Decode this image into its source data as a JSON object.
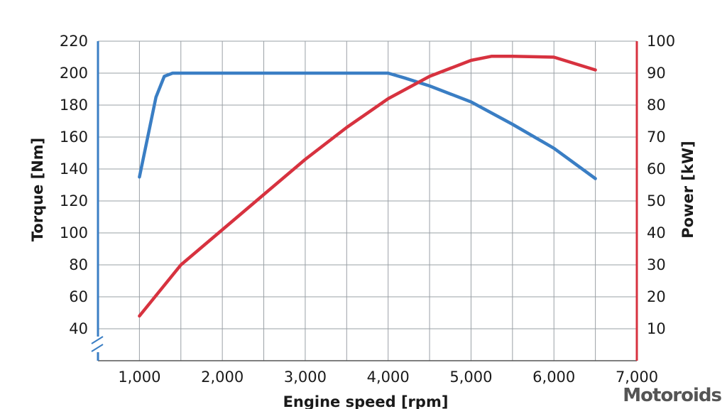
{
  "chart_data": {
    "type": "line",
    "xlabel": "Engine speed [rpm]",
    "ylabel_left": "Torque [Nm]",
    "ylabel_right": "Power [kW]",
    "xlim": [
      500,
      7000
    ],
    "ylim_left": [
      20,
      220
    ],
    "ylim_right": [
      1,
      100
    ],
    "x_ticks": [
      1000,
      2000,
      3000,
      4000,
      5000,
      6000,
      7000
    ],
    "x_tick_labels": [
      "1,000",
      "2,000",
      "3,000",
      "4,000",
      "5,000",
      "6,000",
      "7,000"
    ],
    "y_left_ticks": [
      40,
      60,
      80,
      100,
      120,
      140,
      160,
      180,
      200,
      220
    ],
    "y_right_ticks": [
      10,
      20,
      30,
      40,
      50,
      60,
      70,
      80,
      90,
      100
    ],
    "grid": true,
    "left_axis_break": true,
    "series": [
      {
        "name": "Torque",
        "axis": "left",
        "color": "#3a7ec4",
        "points": [
          [
            1000,
            135
          ],
          [
            1200,
            185
          ],
          [
            1300,
            198
          ],
          [
            1400,
            200
          ],
          [
            2000,
            200
          ],
          [
            3000,
            200
          ],
          [
            4000,
            200
          ],
          [
            4200,
            197
          ],
          [
            4500,
            192
          ],
          [
            5000,
            182
          ],
          [
            5500,
            168
          ],
          [
            6000,
            153
          ],
          [
            6500,
            134
          ]
        ]
      },
      {
        "name": "Power",
        "axis": "right",
        "color": "#d7323f",
        "points": [
          [
            1000,
            14
          ],
          [
            1250,
            22
          ],
          [
            1500,
            30
          ],
          [
            2000,
            41
          ],
          [
            2500,
            52
          ],
          [
            3000,
            63
          ],
          [
            3500,
            73
          ],
          [
            4000,
            82
          ],
          [
            4500,
            89
          ],
          [
            5000,
            94
          ],
          [
            5250,
            95.3
          ],
          [
            5500,
            95.3
          ],
          [
            6000,
            95
          ],
          [
            6250,
            93
          ],
          [
            6500,
            91
          ]
        ]
      }
    ]
  },
  "watermark": "Motoroids"
}
